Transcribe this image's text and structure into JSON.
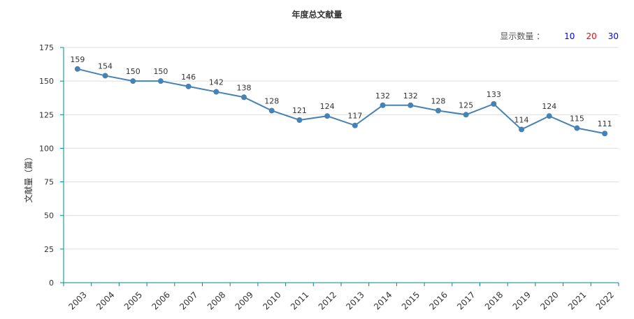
{
  "title": "年度总文献量",
  "controls": {
    "label": "显示数量 ：",
    "options": [
      {
        "label": "10",
        "color": "#0000ff"
      },
      {
        "label": "20",
        "color": "#ff0000"
      },
      {
        "label": "30",
        "color": "#0000ff"
      }
    ]
  },
  "chart_data": {
    "type": "line",
    "title": "年度总文献量",
    "xlabel": "",
    "ylabel": "文献量（篇）",
    "ylim": [
      0,
      175
    ],
    "yticks": [
      0,
      25,
      50,
      75,
      100,
      125,
      150,
      175
    ],
    "categories": [
      "2003",
      "2004",
      "2005",
      "2006",
      "2007",
      "2008",
      "2009",
      "2010",
      "2011",
      "2012",
      "2013",
      "2014",
      "2015",
      "2016",
      "2017",
      "2018",
      "2019",
      "2020",
      "2021",
      "2022"
    ],
    "series": [
      {
        "values": [
          159,
          154,
          150,
          150,
          146,
          142,
          138,
          128,
          121,
          124,
          117,
          132,
          132,
          128,
          125,
          133,
          114,
          124,
          115,
          111
        ],
        "color": "#4682b4"
      }
    ],
    "grid": true,
    "data_labels": true,
    "axis_color": "#008b8b"
  }
}
